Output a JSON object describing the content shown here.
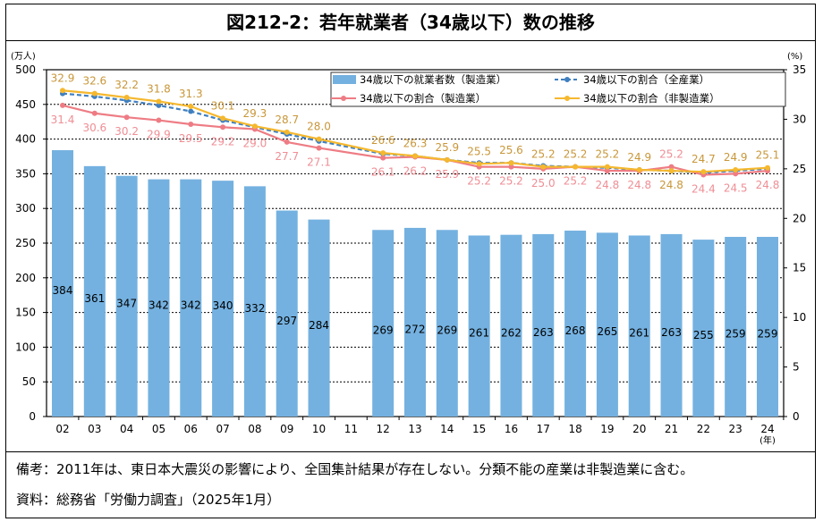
{
  "title": "図212-2：若年就業者（34歳以下）数の推移",
  "notes": {
    "remarks": "備考：2011年は、東日本大震災の影響により、全国集計結果が存在しない。分類不能の産業は非製造業に含む。",
    "source": "資料：総務省「労働力調査」（2025年1月）"
  },
  "chart_data": {
    "type": "bar+line",
    "categories": [
      "02",
      "03",
      "04",
      "05",
      "06",
      "07",
      "08",
      "09",
      "10",
      "11",
      "12",
      "13",
      "14",
      "15",
      "16",
      "17",
      "18",
      "19",
      "20",
      "21",
      "22",
      "23",
      "24"
    ],
    "xlabel_unit": "(年)",
    "left_axis": {
      "unit": "(万人)",
      "ylim": [
        0,
        500
      ],
      "ticks": [
        0,
        50,
        100,
        150,
        200,
        250,
        300,
        350,
        400,
        450,
        500
      ]
    },
    "right_axis": {
      "unit": "(%)",
      "ylim": [
        0,
        35
      ],
      "ticks": [
        0,
        5,
        10,
        15,
        20,
        25,
        30,
        35
      ]
    },
    "grid": "dotted horizontal",
    "legend": "top-right",
    "series": [
      {
        "name": "34歳以下の就業者数（製造業）",
        "kind": "bar",
        "axis": "left",
        "color": "#74b1e0",
        "values": [
          384,
          361,
          347,
          342,
          342,
          340,
          332,
          297,
          284,
          null,
          269,
          272,
          269,
          261,
          262,
          263,
          268,
          265,
          261,
          263,
          255,
          259,
          259
        ]
      },
      {
        "name": "34歳以下の割合（全産業）",
        "kind": "line-dashed",
        "axis": "right",
        "color": "#3f7fc0",
        "values": [
          32.6,
          32.3,
          31.9,
          31.4,
          30.8,
          29.9,
          29.2,
          28.5,
          27.8,
          null,
          26.5,
          26.3,
          25.9,
          25.6,
          25.6,
          25.3,
          25.2,
          25.1,
          24.9,
          24.8,
          24.6,
          24.8,
          25.0
        ]
      },
      {
        "name": "34歳以下の割合（製造業）",
        "kind": "line",
        "axis": "right",
        "color": "#ee7c84",
        "label_color": "#ef8e95",
        "values": [
          31.4,
          30.6,
          30.2,
          29.9,
          29.5,
          29.2,
          29.0,
          27.7,
          27.1,
          null,
          26.1,
          26.2,
          25.9,
          25.2,
          25.2,
          25.0,
          25.2,
          24.8,
          24.8,
          25.2,
          24.4,
          24.5,
          24.8
        ]
      },
      {
        "name": "34歳以下の割合（非製造業）",
        "kind": "line",
        "axis": "right",
        "color": "#f5b82e",
        "label_color": "#c9973a",
        "values": [
          32.9,
          32.6,
          32.2,
          31.8,
          31.3,
          30.1,
          29.3,
          28.7,
          28.0,
          null,
          26.6,
          26.3,
          25.9,
          25.5,
          25.6,
          25.2,
          25.2,
          25.2,
          24.9,
          24.8,
          24.7,
          24.9,
          25.1
        ]
      }
    ]
  }
}
